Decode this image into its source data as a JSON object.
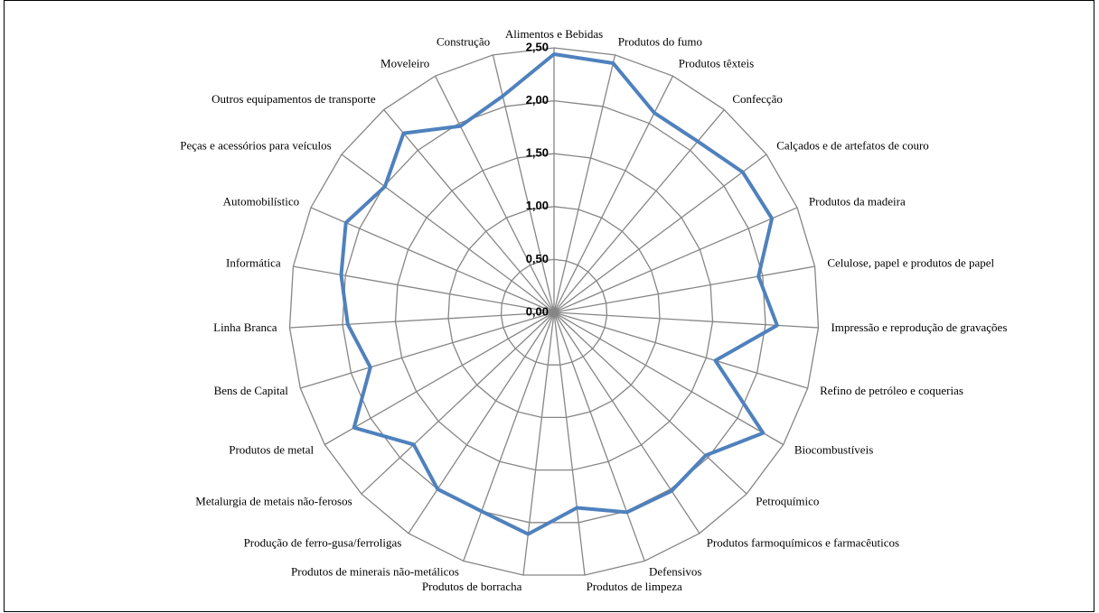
{
  "chart_data": {
    "type": "radar",
    "categories": [
      "Alimentos e Bebidas",
      "Produtos do fumo",
      "Produtos têxteis",
      "Confecção",
      "Calçados e de artefatos de couro",
      "Produtos da madeira",
      "Celulose, papel e produtos de papel",
      "Impressão e reprodução de gravações",
      "Refino de petróleo e coquerias",
      "Biocombustíveis",
      "Petroquímico",
      "Produtos farmoquímicos e farmacêuticos",
      "Defensivos",
      "Produtos de limpeza",
      "Produtos de borracha",
      "Produtos de minerais não-metálicos",
      "Produção de ferro-gusa/ferroligas",
      "Metalurgia de metais não-ferosos",
      "Produtos de metal",
      "Bens de Capital",
      "Linha Branca",
      "Informática",
      "Automobilístico",
      "Peças e acessórios para veículos",
      "Outros equipamentos de transporte",
      "Moveleiro",
      "Construção"
    ],
    "values": [
      2.44,
      2.42,
      2.11,
      2.11,
      2.22,
      2.24,
      1.96,
      2.11,
      1.59,
      2.28,
      1.97,
      2.02,
      2.01,
      1.86,
      2.11,
      2.0,
      2.0,
      1.82,
      2.18,
      1.81,
      1.95,
      2.04,
      2.14,
      1.99,
      2.21,
      1.97,
      2.1
    ],
    "color": "#4f81bd",
    "ylim": [
      0,
      2.5
    ],
    "yticks": [
      {
        "value": 0,
        "label": "0,00"
      },
      {
        "value": 0.5,
        "label": "0,50"
      },
      {
        "value": 1,
        "label": "1,00"
      },
      {
        "value": 1.5,
        "label": "1,50"
      },
      {
        "value": 2,
        "label": "2,00"
      },
      {
        "value": 2.5,
        "label": "2,50"
      }
    ],
    "grid": true
  }
}
